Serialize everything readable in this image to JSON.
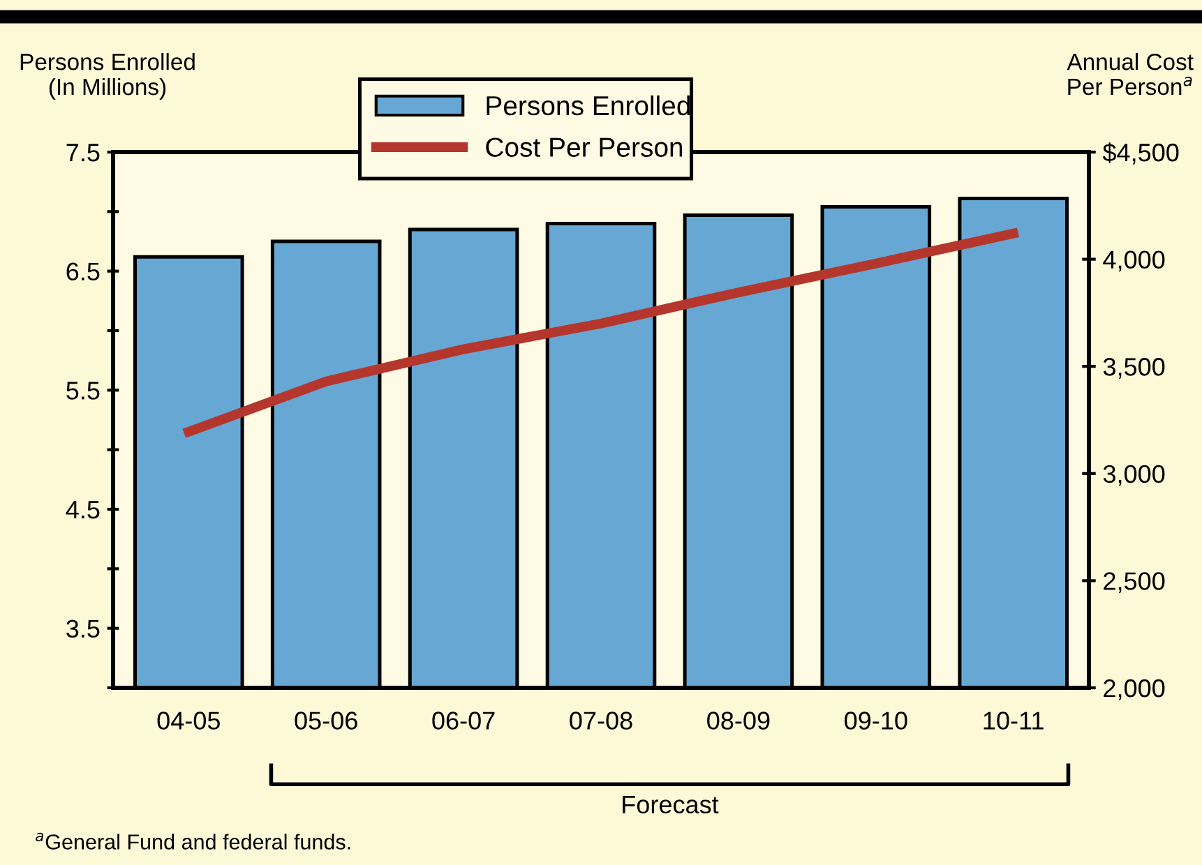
{
  "chart_data": {
    "type": "bar",
    "ylabel": "Persons Enrolled\n(In Millions)",
    "y2label": "Annual Cost\nPer Person$^{a}$",
    "categories": [
      "04-05",
      "05-06",
      "06-07",
      "07-08",
      "08-09",
      "09-10",
      "10-11"
    ],
    "series": [
      {
        "name": "Persons Enrolled",
        "color": "#67a7d4",
        "values": [
          6.62,
          6.75,
          6.85,
          6.9,
          6.97,
          7.04,
          7.11
        ]
      },
      {
        "name": "Cost Per Person",
        "type": "line",
        "axis": "y2",
        "color": "#b5362c",
        "values": [
          3195,
          3430,
          3580,
          3700,
          3845,
          3980,
          4120
        ]
      }
    ],
    "ylim": [
      3,
      7.5
    ],
    "yticks": [
      {
        "value": 3,
        "label": null
      },
      3.5,
      {
        "value": 4,
        "label": null
      },
      4.5,
      {
        "value": 5,
        "label": null
      },
      5.5,
      {
        "value": 6,
        "label": null
      },
      6.5,
      {
        "value": 7,
        "label": null
      },
      7.5
    ],
    "y2lim": [
      2000,
      4500
    ],
    "y2ticks": [
      {
        "value": 2000,
        "label": "2,000"
      },
      {
        "value": 2500,
        "label": "2,500"
      },
      {
        "value": 3000,
        "label": "3,000"
      },
      {
        "value": 3500,
        "label": "3,500"
      },
      {
        "value": 4000,
        "label": "4,000"
      },
      {
        "value": 4500,
        "label": "$4,500"
      }
    ],
    "annotations": [
      "Forecast",
      "$^{a}$General Fund and federal funds."
    ],
    "legend": "top",
    "grid": false,
    "line_style": "solid",
    "marker": "none"
  }
}
